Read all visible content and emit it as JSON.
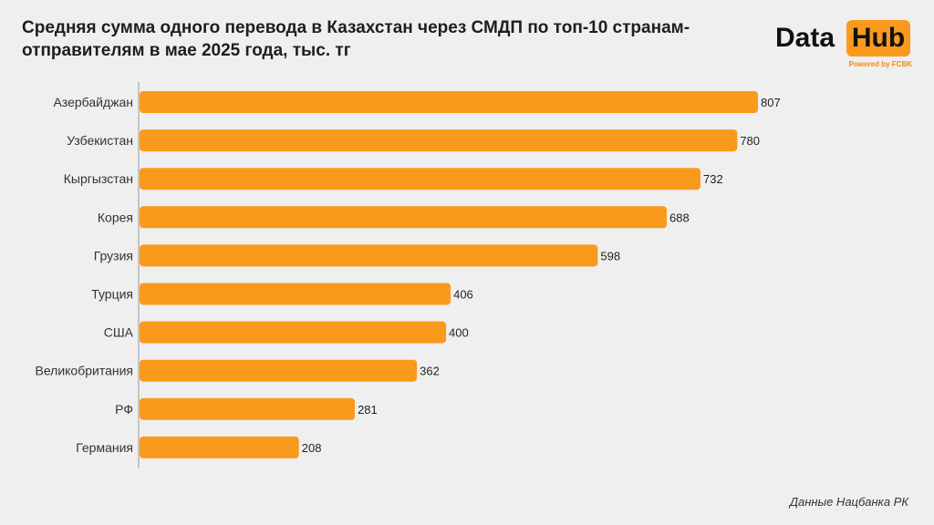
{
  "title": "Средняя сумма одного перевода в Казахстан через СМДП по топ-10 странам-отправителям в мае 2025 года, тыс. тг",
  "logo": {
    "word1": "Data",
    "word2": "Hub",
    "tagline": "Powered by FCBK"
  },
  "source": "Данные Нацбанка РК",
  "colors": {
    "bar": "#f99a1c",
    "background": "#efefef"
  },
  "chart_data": {
    "type": "bar",
    "orientation": "horizontal",
    "title": "Средняя сумма одного перевода в Казахстан через СМДП по топ-10 странам-отправителям в мае 2025 года, тыс. тг",
    "categories": [
      "Азербайджан",
      "Узбекистан",
      "Кыргызстан",
      "Корея",
      "Грузия",
      "Турция",
      "США",
      "Великобритания",
      "РФ",
      "Германия"
    ],
    "values": [
      807,
      780,
      732,
      688,
      598,
      406,
      400,
      362,
      281,
      208
    ],
    "xlim": [
      0,
      807
    ],
    "grid": false,
    "legend": "none",
    "data_labels": true
  }
}
